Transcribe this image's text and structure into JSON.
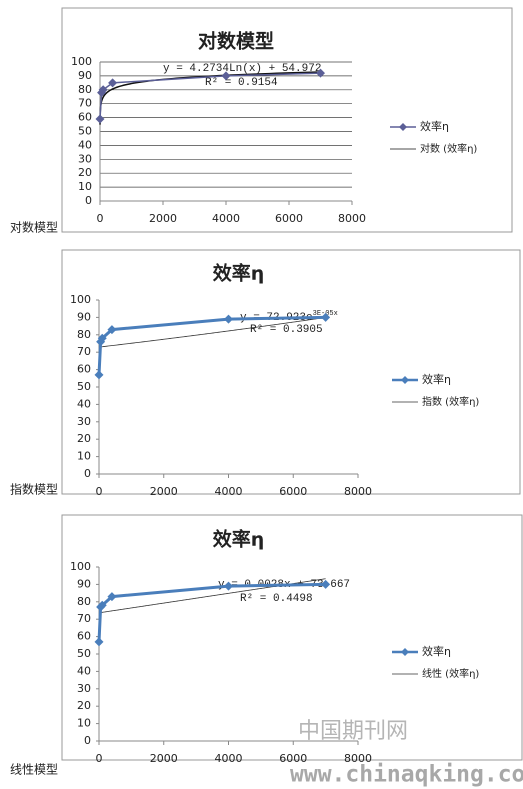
{
  "chart_data": [
    {
      "type": "line",
      "title": "对数模型",
      "x": [
        0,
        50,
        100,
        400,
        4000,
        7000
      ],
      "series": [
        {
          "name": "效率η",
          "color": "#5b5f97",
          "values": [
            59,
            78,
            80,
            85,
            90,
            92
          ]
        }
      ],
      "trendline": {
        "kind": "log",
        "name": "对数 (效率η)",
        "color": "#111111",
        "a": 4.2734,
        "b": 54.972,
        "label": "y = 4.2734Ln(x) + 54.972",
        "r2_label": "R² = 0.9154"
      },
      "xlim": [
        0,
        8000
      ],
      "xticks": [
        0,
        2000,
        4000,
        6000,
        8000
      ],
      "ylim": [
        0,
        100
      ],
      "yticks": [
        0,
        10,
        20,
        30,
        40,
        50,
        60,
        70,
        80,
        90,
        100
      ],
      "grid": true
    },
    {
      "type": "line",
      "title": "效率η",
      "x": [
        0,
        50,
        100,
        400,
        4000,
        7000
      ],
      "series": [
        {
          "name": "效率η",
          "color": "#4a7ebb",
          "values": [
            57,
            76,
            78,
            83,
            89,
            90
          ]
        }
      ],
      "trendline": {
        "kind": "exp",
        "name": "指数 (效率η)",
        "color": "#333333",
        "a": 72.923,
        "b": 3e-05,
        "label": "y = 72.923e",
        "label_sup": "3E-05x",
        "r2_label": "R² = 0.3905"
      },
      "xlim": [
        0,
        8000
      ],
      "xticks": [
        0,
        2000,
        4000,
        6000,
        8000
      ],
      "ylim": [
        0,
        100
      ],
      "yticks": [
        0,
        10,
        20,
        30,
        40,
        50,
        60,
        70,
        80,
        90,
        100
      ],
      "grid": false
    },
    {
      "type": "line",
      "title": "效率η",
      "x": [
        0,
        50,
        100,
        400,
        4000,
        7000
      ],
      "series": [
        {
          "name": "效率η",
          "color": "#4a7ebb",
          "values": [
            57,
            77,
            78,
            83,
            89,
            90
          ]
        }
      ],
      "trendline": {
        "kind": "linear",
        "name": "线性 (效率η)",
        "color": "#333333",
        "a": 0.0028,
        "b": 73.667,
        "label": "y = 0.0028x + 73.667",
        "r2_label": "R² = 0.4498"
      },
      "xlim": [
        0,
        8000
      ],
      "xticks": [
        0,
        2000,
        4000,
        6000,
        8000
      ],
      "ylim": [
        0,
        100
      ],
      "yticks": [
        0,
        10,
        20,
        30,
        40,
        50,
        60,
        70,
        80,
        90,
        100
      ],
      "grid": false
    }
  ],
  "side_labels": [
    "对数模型",
    "指数模型",
    "线性模型"
  ],
  "watermark": {
    "text": "中国期刊网",
    "url": "www.chinaqking.com"
  }
}
